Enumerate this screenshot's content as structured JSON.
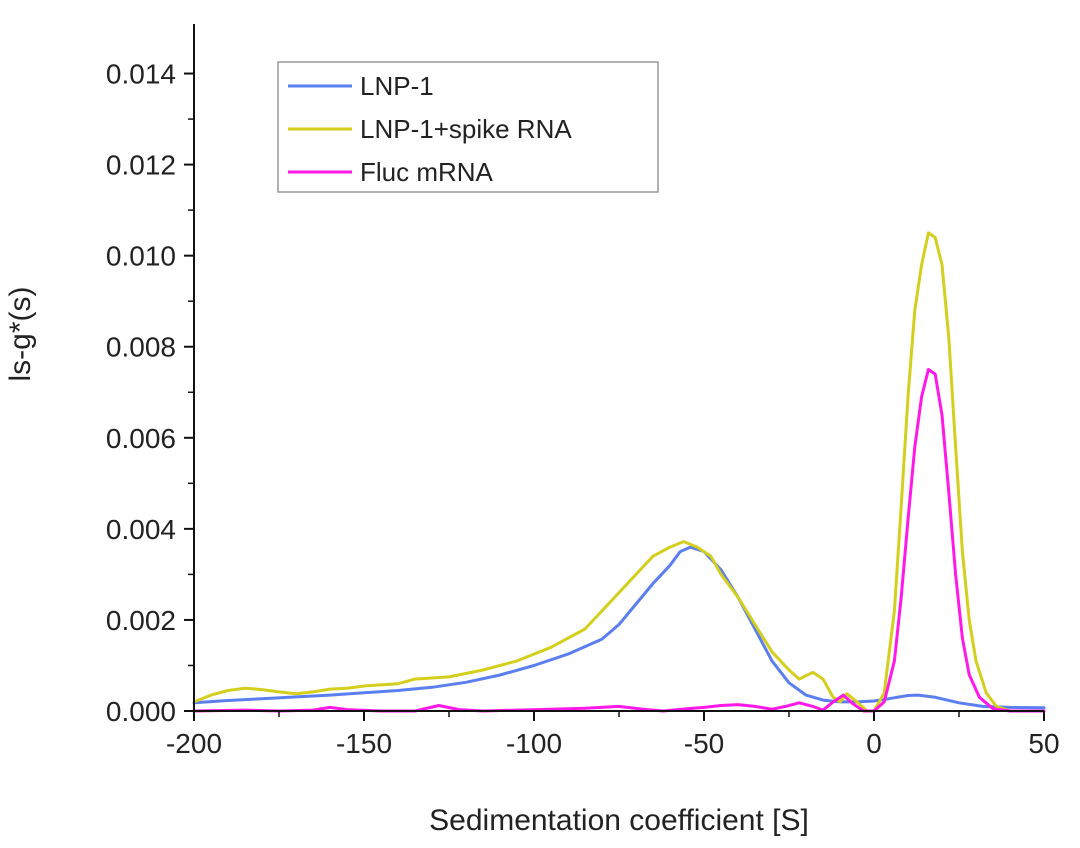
{
  "chart_data": {
    "type": "line",
    "title": "",
    "xlabel": "Sedimentation coefficient [S]",
    "ylabel": "ls-g*(s)",
    "xlim": [
      -200,
      50
    ],
    "ylim": [
      0,
      0.015
    ],
    "x_ticks": [
      -200,
      -150,
      -100,
      -50,
      0,
      50
    ],
    "x_tick_labels": [
      "-200",
      "-150",
      "-100",
      "-50",
      "0",
      "50"
    ],
    "y_ticks": [
      0,
      0.002,
      0.004,
      0.006,
      0.008,
      0.01,
      0.012,
      0.014
    ],
    "y_tick_labels": [
      "0.000",
      "0.002",
      "0.004",
      "0.006",
      "0.008",
      "0.010",
      "0.012",
      "0.014"
    ],
    "grid": false,
    "legend_position": "top-left",
    "series": [
      {
        "name": "LNP-1",
        "color": "#5b7ff0",
        "points": [
          [
            -200,
            0.00018
          ],
          [
            -190,
            0.00023
          ],
          [
            -180,
            0.00027
          ],
          [
            -170,
            0.00031
          ],
          [
            -160,
            0.00035
          ],
          [
            -150,
            0.0004
          ],
          [
            -140,
            0.00045
          ],
          [
            -130,
            0.00052
          ],
          [
            -120,
            0.00063
          ],
          [
            -110,
            0.00079
          ],
          [
            -100,
            0.001
          ],
          [
            -90,
            0.00125
          ],
          [
            -80,
            0.00158
          ],
          [
            -75,
            0.0019
          ],
          [
            -70,
            0.00235
          ],
          [
            -65,
            0.0028
          ],
          [
            -60,
            0.0032
          ],
          [
            -57,
            0.0035
          ],
          [
            -54,
            0.0036
          ],
          [
            -50,
            0.0035
          ],
          [
            -45,
            0.0031
          ],
          [
            -40,
            0.0025
          ],
          [
            -35,
            0.0018
          ],
          [
            -30,
            0.0011
          ],
          [
            -25,
            0.00062
          ],
          [
            -20,
            0.00035
          ],
          [
            -15,
            0.00024
          ],
          [
            -10,
            0.0002
          ],
          [
            -5,
            0.0002
          ],
          [
            0,
            0.00022
          ],
          [
            5,
            0.00028
          ],
          [
            10,
            0.00034
          ],
          [
            13,
            0.00035
          ],
          [
            18,
            0.0003
          ],
          [
            25,
            0.00018
          ],
          [
            32,
            0.0001
          ],
          [
            40,
            8e-05
          ],
          [
            50,
            7e-05
          ]
        ]
      },
      {
        "name": "LNP-1+spike RNA",
        "color": "#d4cf1c",
        "points": [
          [
            -200,
            0.0002
          ],
          [
            -195,
            0.00035
          ],
          [
            -190,
            0.00045
          ],
          [
            -185,
            0.0005
          ],
          [
            -180,
            0.00047
          ],
          [
            -175,
            0.00042
          ],
          [
            -170,
            0.00038
          ],
          [
            -165,
            0.00042
          ],
          [
            -160,
            0.00048
          ],
          [
            -155,
            0.0005
          ],
          [
            -150,
            0.00055
          ],
          [
            -140,
            0.0006
          ],
          [
            -135,
            0.0007
          ],
          [
            -125,
            0.00075
          ],
          [
            -115,
            0.0009
          ],
          [
            -105,
            0.0011
          ],
          [
            -95,
            0.0014
          ],
          [
            -85,
            0.0018
          ],
          [
            -80,
            0.0022
          ],
          [
            -75,
            0.0026
          ],
          [
            -70,
            0.003
          ],
          [
            -65,
            0.0034
          ],
          [
            -60,
            0.0036
          ],
          [
            -56,
            0.00372
          ],
          [
            -52,
            0.0036
          ],
          [
            -48,
            0.0034
          ],
          [
            -45,
            0.003
          ],
          [
            -40,
            0.0025
          ],
          [
            -35,
            0.0019
          ],
          [
            -30,
            0.0013
          ],
          [
            -25,
            0.0009
          ],
          [
            -22,
            0.0007
          ],
          [
            -18,
            0.00085
          ],
          [
            -15,
            0.0007
          ],
          [
            -12,
            0.0003
          ],
          [
            -10,
            0.0002
          ],
          [
            -8,
            0.00038
          ],
          [
            -5,
            0.0002
          ],
          [
            -2,
            0
          ],
          [
            0,
            0
          ],
          [
            3,
            0.0004
          ],
          [
            6,
            0.0022
          ],
          [
            8,
            0.0045
          ],
          [
            10,
            0.0069
          ],
          [
            12,
            0.0088
          ],
          [
            14,
            0.0098
          ],
          [
            16,
            0.0105
          ],
          [
            18,
            0.0104
          ],
          [
            20,
            0.0098
          ],
          [
            22,
            0.0082
          ],
          [
            24,
            0.0058
          ],
          [
            26,
            0.0035
          ],
          [
            28,
            0.002
          ],
          [
            30,
            0.0011
          ],
          [
            33,
            0.0004
          ],
          [
            36,
            0.0001
          ],
          [
            40,
            0
          ]
        ]
      },
      {
        "name": "Fluc mRNA",
        "color": "#ff19e8",
        "points": [
          [
            -200,
            0
          ],
          [
            -185,
            2e-05
          ],
          [
            -175,
            0
          ],
          [
            -165,
            2e-05
          ],
          [
            -160,
            8e-05
          ],
          [
            -155,
            3e-05
          ],
          [
            -145,
            0
          ],
          [
            -135,
            0
          ],
          [
            -128,
            0.00012
          ],
          [
            -122,
            3e-05
          ],
          [
            -115,
            0
          ],
          [
            -105,
            2e-05
          ],
          [
            -95,
            4e-05
          ],
          [
            -85,
            6e-05
          ],
          [
            -75,
            0.0001
          ],
          [
            -68,
            4e-05
          ],
          [
            -62,
            0
          ],
          [
            -55,
            5e-05
          ],
          [
            -50,
            8e-05
          ],
          [
            -45,
            0.00012
          ],
          [
            -40,
            0.00014
          ],
          [
            -35,
            0.0001
          ],
          [
            -30,
            4e-05
          ],
          [
            -26,
            0.0001
          ],
          [
            -22,
            0.00018
          ],
          [
            -18,
            0.0001
          ],
          [
            -15,
            2e-05
          ],
          [
            -12,
            0.0002
          ],
          [
            -9,
            0.00035
          ],
          [
            -6,
            0.00015
          ],
          [
            -3,
            0
          ],
          [
            0,
            0
          ],
          [
            3,
            0.0002
          ],
          [
            6,
            0.0011
          ],
          [
            8,
            0.0025
          ],
          [
            10,
            0.0042
          ],
          [
            12,
            0.0058
          ],
          [
            14,
            0.0069
          ],
          [
            16,
            0.0075
          ],
          [
            18,
            0.0074
          ],
          [
            20,
            0.0065
          ],
          [
            22,
            0.0048
          ],
          [
            24,
            0.003
          ],
          [
            26,
            0.0016
          ],
          [
            28,
            0.0008
          ],
          [
            31,
            0.0003
          ],
          [
            35,
            5e-05
          ],
          [
            40,
            0
          ],
          [
            50,
            0
          ]
        ]
      }
    ]
  }
}
